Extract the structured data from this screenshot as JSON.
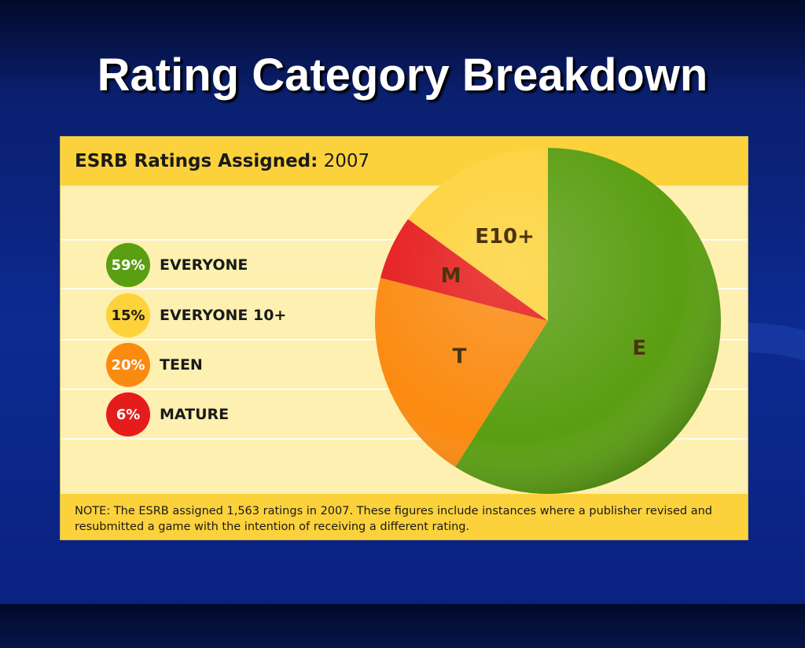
{
  "slide": {
    "title": "Rating Category Breakdown"
  },
  "panel": {
    "title_bold": "ESRB Ratings Assigned:",
    "title_year": "2007",
    "note": "NOTE: The ESRB assigned 1,563 ratings in 2007. These figures include instances where a publisher revised and resubmitted a game with the intention of receiving a different rating."
  },
  "legend": [
    {
      "pct": "59%",
      "label": "EVERYONE",
      "color": "#5a9e12",
      "text_color": "#ffffff"
    },
    {
      "pct": "15%",
      "label": "EVERYONE 10+",
      "color": "#fdd23a",
      "text_color": "#1a1a1a"
    },
    {
      "pct": "20%",
      "label": "TEEN",
      "color": "#fb8a10",
      "text_color": "#ffffff"
    },
    {
      "pct": "6%",
      "label": "MATURE",
      "color": "#e51c1c",
      "text_color": "#ffffff"
    }
  ],
  "chart_data": {
    "type": "pie",
    "title": "ESRB Ratings Assigned: 2007",
    "slices": [
      {
        "label": "E",
        "value": 59,
        "color": "#5a9e12"
      },
      {
        "label": "T",
        "value": 20,
        "color": "#fb8a10"
      },
      {
        "label": "M",
        "value": 6,
        "color": "#e51c1c"
      },
      {
        "label": "E10+",
        "value": 15,
        "color": "#fdd23a"
      }
    ],
    "start": "12 o'clock, clockwise"
  }
}
